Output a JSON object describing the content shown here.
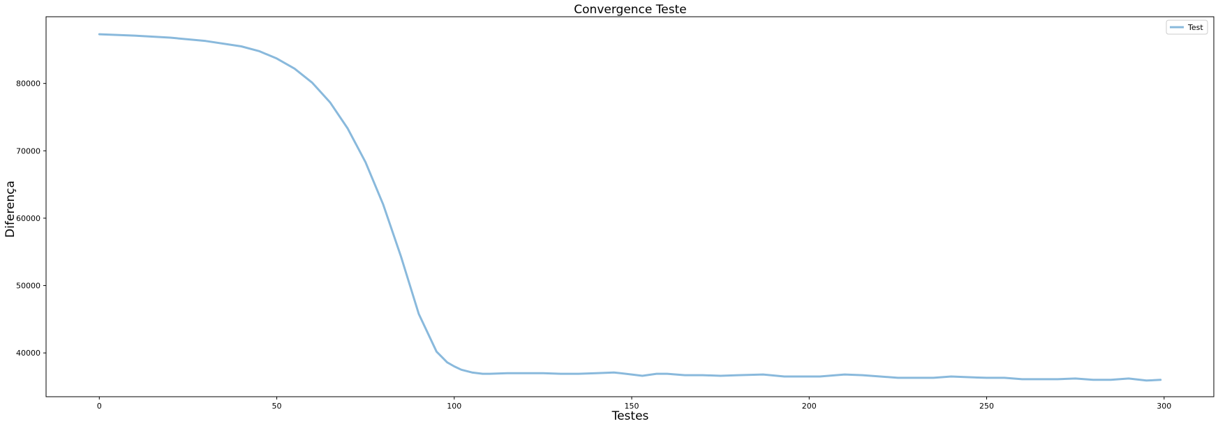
{
  "chart_data": {
    "type": "line",
    "title": "Convergence Teste",
    "xlabel": "Testes",
    "ylabel": "Diferença",
    "xlim": [
      -15,
      314
    ],
    "ylim": [
      33500,
      89900
    ],
    "xticks": [
      0,
      50,
      100,
      150,
      200,
      250,
      300
    ],
    "yticks": [
      40000,
      50000,
      60000,
      70000,
      80000
    ],
    "grid": false,
    "legend_position": "top-right",
    "series": [
      {
        "name": "Test",
        "color": "#89b9dc",
        "x": [
          0,
          10,
          20,
          30,
          40,
          45,
          50,
          55,
          60,
          65,
          70,
          75,
          80,
          85,
          90,
          95,
          98,
          100,
          102,
          105,
          108,
          110,
          115,
          120,
          125,
          130,
          135,
          140,
          145,
          150,
          153,
          157,
          160,
          165,
          170,
          175,
          180,
          187,
          193,
          198,
          203,
          210,
          215,
          220,
          225,
          230,
          235,
          240,
          245,
          250,
          255,
          260,
          265,
          270,
          275,
          280,
          285,
          290,
          295,
          299
        ],
        "y": [
          87300,
          87100,
          86800,
          86300,
          85500,
          84800,
          83700,
          82200,
          80100,
          77200,
          73300,
          68300,
          62000,
          54300,
          45800,
          40200,
          38600,
          38000,
          37500,
          37100,
          36900,
          36900,
          37000,
          37000,
          37000,
          36900,
          36900,
          37000,
          37100,
          36800,
          36600,
          36900,
          36900,
          36700,
          36700,
          36600,
          36700,
          36800,
          36500,
          36500,
          36500,
          36800,
          36700,
          36500,
          36300,
          36300,
          36300,
          36500,
          36400,
          36300,
          36300,
          36100,
          36100,
          36100,
          36200,
          36000,
          36000,
          36200,
          35900,
          36000
        ]
      }
    ]
  }
}
